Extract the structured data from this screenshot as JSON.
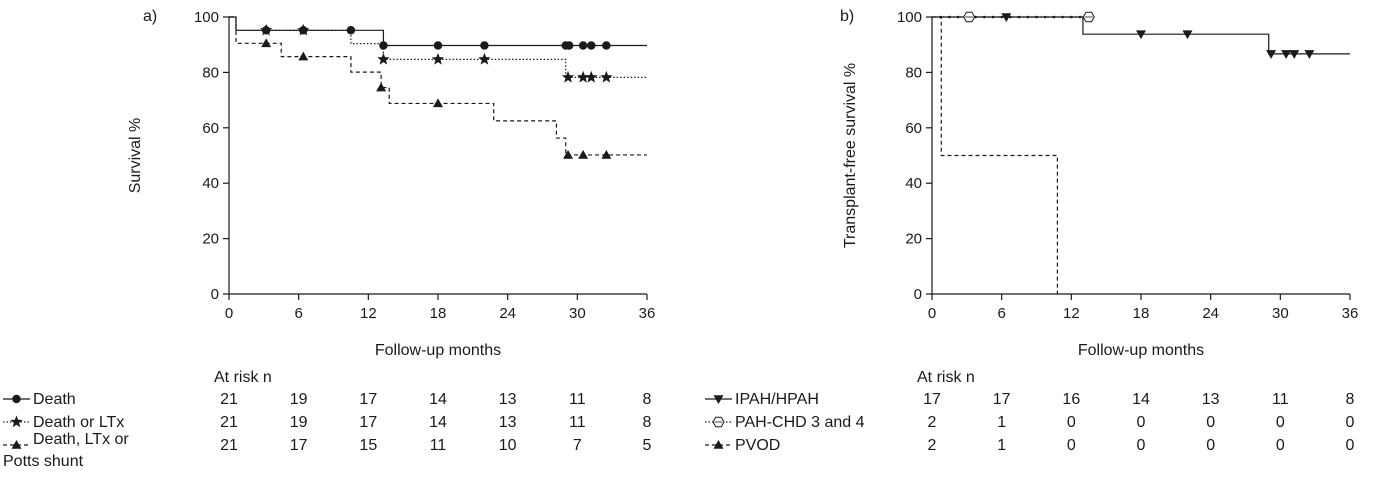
{
  "chart_data": [
    {
      "type": "line",
      "panel_label": "a)",
      "xlabel": "Follow-up months",
      "ylabel": "Survival %",
      "xlim": [
        0,
        36
      ],
      "ylim": [
        0,
        100
      ],
      "x_ticks": [
        "0",
        "6",
        "12",
        "18",
        "24",
        "30",
        "36"
      ],
      "y_ticks": [
        "0",
        "20",
        "40",
        "60",
        "80",
        "100"
      ],
      "series": [
        {
          "name": "Death",
          "line_style": "solid",
          "marker": "circle",
          "steps": [
            [
              0,
              100
            ],
            [
              0.6,
              95.2
            ],
            [
              13.3,
              89.7
            ],
            [
              36,
              89.7
            ]
          ],
          "censored": [
            [
              3.2,
              95.2
            ],
            [
              6.4,
              95.2
            ],
            [
              10.5,
              95.2
            ],
            [
              13.3,
              89.7
            ],
            [
              18,
              89.7
            ],
            [
              22,
              89.7
            ],
            [
              29,
              89.7
            ],
            [
              29.3,
              89.7
            ],
            [
              30.5,
              89.7
            ],
            [
              31.2,
              89.7
            ],
            [
              32.5,
              89.7
            ]
          ]
        },
        {
          "name": "Death or LTx",
          "line_style": "dotted",
          "marker": "star",
          "steps": [
            [
              0,
              100
            ],
            [
              0.6,
              95.2
            ],
            [
              10.5,
              90.4
            ],
            [
              13.3,
              84.7
            ],
            [
              29,
              78.2
            ],
            [
              36,
              78.2
            ]
          ],
          "censored": [
            [
              3.2,
              95.2
            ],
            [
              6.4,
              95.2
            ],
            [
              13.3,
              84.7
            ],
            [
              18,
              84.7
            ],
            [
              22,
              84.7
            ],
            [
              29.2,
              78.2
            ],
            [
              30.5,
              78.2
            ],
            [
              31.2,
              78.2
            ],
            [
              32.5,
              78.2
            ]
          ]
        },
        {
          "name": "Death, LTx or Potts shunt",
          "line_style": "dashed",
          "marker": "triangle",
          "steps": [
            [
              0,
              100
            ],
            [
              0.6,
              90.5
            ],
            [
              4.5,
              85.7
            ],
            [
              10.5,
              80.1
            ],
            [
              13.1,
              74.5
            ],
            [
              13.8,
              68.8
            ],
            [
              22.8,
              62.5
            ],
            [
              28.2,
              56.3
            ],
            [
              29,
              50.2
            ],
            [
              36,
              50.2
            ]
          ],
          "censored": [
            [
              3.2,
              90.5
            ],
            [
              6.4,
              85.7
            ],
            [
              13.1,
              74.5
            ],
            [
              18,
              68.8
            ],
            [
              29.2,
              50.2
            ],
            [
              30.5,
              50.2
            ],
            [
              32.5,
              50.2
            ]
          ]
        }
      ],
      "at_risk": {
        "title": "At risk n",
        "rows": [
          {
            "label": "Death",
            "values": [
              "21",
              "19",
              "17",
              "14",
              "13",
              "11",
              "8"
            ]
          },
          {
            "label": "Death or LTx",
            "values": [
              "21",
              "19",
              "17",
              "14",
              "13",
              "11",
              "8"
            ]
          },
          {
            "label_line1": "Death, LTx or",
            "label_line2": "Potts shunt",
            "values": [
              "21",
              "17",
              "15",
              "11",
              "10",
              "7",
              "5"
            ]
          }
        ]
      }
    },
    {
      "type": "line",
      "panel_label": "b)",
      "xlabel": "Follow-up months",
      "ylabel": "Transplant-free survival %",
      "xlim": [
        0,
        36
      ],
      "ylim": [
        0,
        100
      ],
      "x_ticks": [
        "0",
        "6",
        "12",
        "18",
        "24",
        "30",
        "36"
      ],
      "y_ticks": [
        "0",
        "20",
        "40",
        "60",
        "80",
        "100"
      ],
      "series": [
        {
          "name": "IPAH/HPAH",
          "line_style": "solid",
          "marker": "triangle-down",
          "steps": [
            [
              0,
              100
            ],
            [
              13,
              93.8
            ],
            [
              29,
              86.7
            ],
            [
              36,
              86.7
            ]
          ],
          "censored": [
            [
              6.4,
              100
            ],
            [
              18,
              93.8
            ],
            [
              22,
              93.8
            ],
            [
              29.2,
              86.7
            ],
            [
              30.5,
              86.7
            ],
            [
              31.2,
              86.7
            ],
            [
              32.5,
              86.7
            ]
          ]
        },
        {
          "name": "PAH-CHD 3 and 4",
          "line_style": "dotted",
          "marker": "hexagon",
          "steps": [
            [
              0,
              100
            ],
            [
              13.5,
              100
            ]
          ],
          "censored": [
            [
              3.2,
              100
            ],
            [
              13.5,
              100
            ]
          ]
        },
        {
          "name": "PVOD",
          "line_style": "dashed",
          "marker": "triangle",
          "steps": [
            [
              0,
              100
            ],
            [
              0.8,
              50
            ],
            [
              10.8,
              0
            ]
          ],
          "censored": []
        }
      ],
      "at_risk": {
        "title": "At risk n",
        "rows": [
          {
            "label": "IPAH/HPAH",
            "values": [
              "17",
              "17",
              "16",
              "14",
              "13",
              "11",
              "8"
            ]
          },
          {
            "label": "PAH-CHD 3 and 4",
            "values": [
              "2",
              "1",
              "0",
              "0",
              "0",
              "0",
              "0"
            ]
          },
          {
            "label": "PVOD",
            "values": [
              "2",
              "1",
              "0",
              "0",
              "0",
              "0",
              "0"
            ]
          }
        ]
      }
    }
  ]
}
